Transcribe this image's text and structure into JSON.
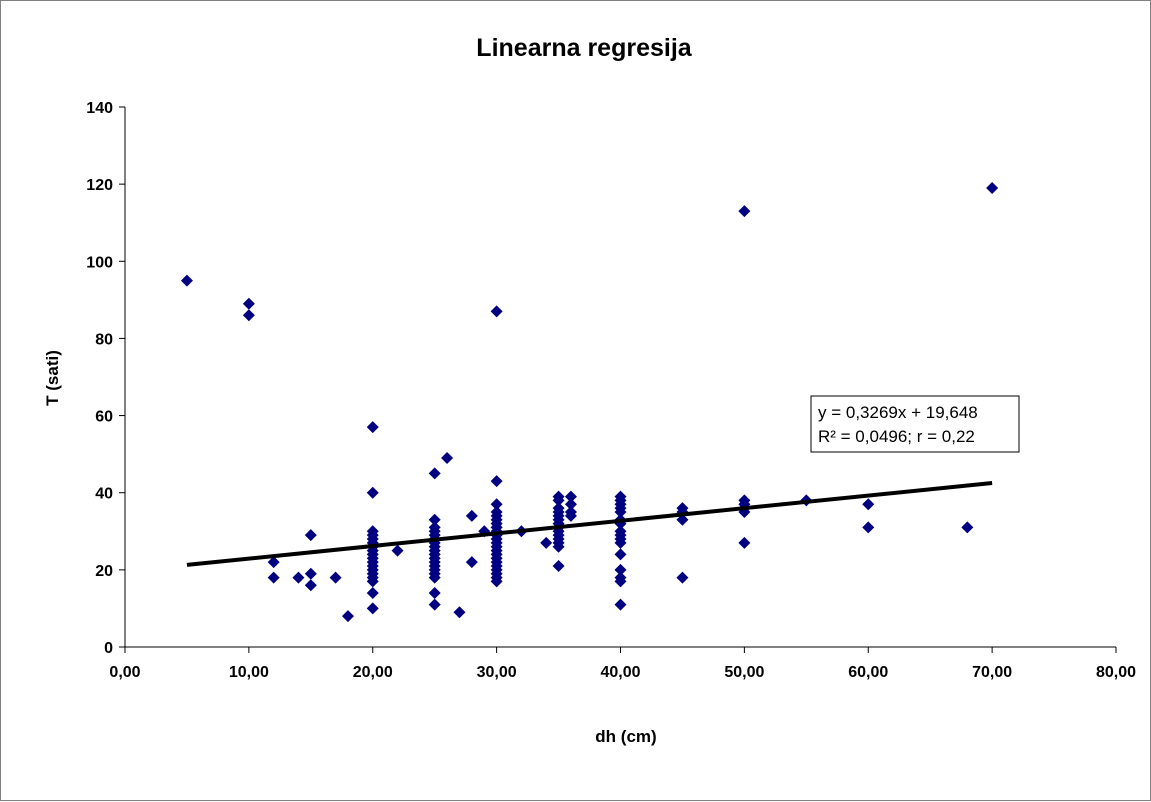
{
  "chart_data": {
    "type": "scatter",
    "title": "Linearna regresija",
    "xlabel": "dh (cm)",
    "ylabel": "T (sati)",
    "xlim": [
      0,
      80
    ],
    "ylim": [
      0,
      140
    ],
    "x_ticks": [
      "0,00",
      "10,00",
      "20,00",
      "30,00",
      "40,00",
      "50,00",
      "60,00",
      "70,00",
      "80,00"
    ],
    "y_ticks": [
      "0",
      "20",
      "40",
      "60",
      "80",
      "100",
      "120",
      "140"
    ],
    "x_tick_values": [
      0,
      10,
      20,
      30,
      40,
      50,
      60,
      70,
      80
    ],
    "y_tick_values": [
      0,
      20,
      40,
      60,
      80,
      100,
      120,
      140
    ],
    "grid": false,
    "legend": "none",
    "marker_color": "#000080",
    "trendline": {
      "slope": 0.3269,
      "intercept": 19.648,
      "x_range": [
        5,
        70
      ],
      "color": "#000000",
      "equation_label": "y = 0,3269x + 19,648",
      "stats_label": "R² = 0,0496; r = 0,22"
    },
    "points": [
      [
        5,
        95
      ],
      [
        10,
        89
      ],
      [
        10,
        86
      ],
      [
        12,
        22
      ],
      [
        12,
        18
      ],
      [
        14,
        18
      ],
      [
        15,
        29
      ],
      [
        15,
        19
      ],
      [
        15,
        16
      ],
      [
        17,
        18
      ],
      [
        18,
        8
      ],
      [
        20,
        57
      ],
      [
        20,
        40
      ],
      [
        20,
        30
      ],
      [
        20,
        29
      ],
      [
        20,
        28
      ],
      [
        20,
        27
      ],
      [
        20,
        26
      ],
      [
        20,
        25
      ],
      [
        20,
        24
      ],
      [
        20,
        23
      ],
      [
        20,
        22
      ],
      [
        20,
        21
      ],
      [
        20,
        20
      ],
      [
        20,
        19
      ],
      [
        20,
        18
      ],
      [
        20,
        17
      ],
      [
        20,
        14
      ],
      [
        20,
        10
      ],
      [
        22,
        25
      ],
      [
        25,
        45
      ],
      [
        25,
        33
      ],
      [
        25,
        31
      ],
      [
        25,
        30
      ],
      [
        25,
        29
      ],
      [
        25,
        28
      ],
      [
        25,
        27
      ],
      [
        25,
        26
      ],
      [
        25,
        25
      ],
      [
        25,
        24
      ],
      [
        25,
        23
      ],
      [
        25,
        22
      ],
      [
        25,
        21
      ],
      [
        25,
        20
      ],
      [
        25,
        19
      ],
      [
        25,
        18
      ],
      [
        25,
        14
      ],
      [
        25,
        11
      ],
      [
        26,
        49
      ],
      [
        27,
        9
      ],
      [
        28,
        34
      ],
      [
        28,
        22
      ],
      [
        29,
        30
      ],
      [
        30,
        87
      ],
      [
        30,
        43
      ],
      [
        30,
        37
      ],
      [
        30,
        35
      ],
      [
        30,
        34
      ],
      [
        30,
        33
      ],
      [
        30,
        32
      ],
      [
        30,
        31
      ],
      [
        30,
        30
      ],
      [
        30,
        29
      ],
      [
        30,
        28
      ],
      [
        30,
        27
      ],
      [
        30,
        26
      ],
      [
        30,
        25
      ],
      [
        30,
        24
      ],
      [
        30,
        23
      ],
      [
        30,
        22
      ],
      [
        30,
        21
      ],
      [
        30,
        20
      ],
      [
        30,
        19
      ],
      [
        30,
        18
      ],
      [
        30,
        17
      ],
      [
        32,
        30
      ],
      [
        34,
        27
      ],
      [
        35,
        39
      ],
      [
        35,
        38
      ],
      [
        35,
        36
      ],
      [
        35,
        35
      ],
      [
        35,
        34
      ],
      [
        35,
        33
      ],
      [
        35,
        32
      ],
      [
        35,
        31
      ],
      [
        35,
        30
      ],
      [
        35,
        29
      ],
      [
        35,
        28
      ],
      [
        35,
        27
      ],
      [
        35,
        26
      ],
      [
        35,
        21
      ],
      [
        36,
        39
      ],
      [
        36,
        37
      ],
      [
        36,
        35
      ],
      [
        36,
        34
      ],
      [
        40,
        39
      ],
      [
        40,
        38
      ],
      [
        40,
        37
      ],
      [
        40,
        36
      ],
      [
        40,
        35
      ],
      [
        40,
        33
      ],
      [
        40,
        32
      ],
      [
        40,
        30
      ],
      [
        40,
        29
      ],
      [
        40,
        28
      ],
      [
        40,
        27
      ],
      [
        40,
        24
      ],
      [
        40,
        20
      ],
      [
        40,
        18
      ],
      [
        40,
        17
      ],
      [
        40,
        11
      ],
      [
        45,
        36
      ],
      [
        45,
        35
      ],
      [
        45,
        33
      ],
      [
        45,
        18
      ],
      [
        50,
        113
      ],
      [
        50,
        38
      ],
      [
        50,
        37
      ],
      [
        50,
        36
      ],
      [
        50,
        35
      ],
      [
        50,
        27
      ],
      [
        55,
        38
      ],
      [
        60,
        37
      ],
      [
        60,
        31
      ],
      [
        68,
        31
      ],
      [
        70,
        119
      ]
    ]
  }
}
